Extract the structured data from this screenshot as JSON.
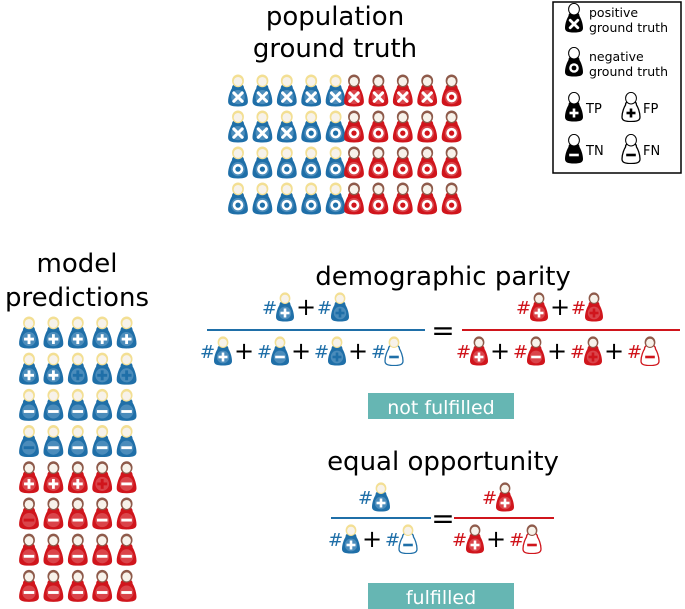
{
  "colors": {
    "blue": "#1f6fa8",
    "blue_pale": "#cfe3f3",
    "red": "#d0151c",
    "red_pale": "#f8d2d2",
    "head_blond": "#f3df93",
    "head_brown": "#8e5a4a",
    "face": "#f7f2ea",
    "black": "#000000",
    "badge": "#66b6b3"
  },
  "titles": {
    "population_1": "population",
    "population_2": "ground truth",
    "model_1": "model",
    "model_2": "predictions",
    "dp": "demographic parity",
    "eo": "equal opportunity"
  },
  "legend": {
    "positive_1": "positive",
    "positive_2": "ground truth",
    "negative_1": "negative",
    "negative_2": "ground truth",
    "tp": "TP",
    "fp": "FP",
    "tn": "TN",
    "fn": "FN"
  },
  "symbols": {
    "hash": "#",
    "plus": "+",
    "equals": "="
  },
  "badges": {
    "dp": "not fulfilled",
    "eo": "fulfilled"
  },
  "population": {
    "blue": [
      [
        "x",
        "x",
        "x",
        "x",
        "x"
      ],
      [
        "x",
        "x",
        "x",
        "o",
        "o"
      ],
      [
        "o",
        "o",
        "o",
        "o",
        "o"
      ],
      [
        "o",
        "o",
        "o",
        "o",
        "o"
      ]
    ],
    "red": [
      [
        "x",
        "x",
        "x",
        "x",
        "o"
      ],
      [
        "o",
        "o",
        "o",
        "o",
        "o"
      ],
      [
        "o",
        "o",
        "o",
        "o",
        "o"
      ],
      [
        "o",
        "o",
        "o",
        "o",
        "o"
      ]
    ]
  },
  "predictions": [
    [
      "TP",
      "TP",
      "TP",
      "TP",
      "TP"
    ],
    [
      "TP",
      "TP",
      "FP",
      "FP",
      "FP"
    ],
    [
      "TN",
      "TN",
      "TN",
      "TN",
      "TN"
    ],
    [
      "FN",
      "TN",
      "TN",
      "TN",
      "TN"
    ],
    [
      "TP",
      "TP",
      "TP",
      "FP",
      "TN"
    ],
    [
      "FN",
      "TN",
      "TN",
      "TN",
      "TN"
    ],
    [
      "TN",
      "TN",
      "TN",
      "TN",
      "TN"
    ],
    [
      "TN",
      "TN",
      "TN",
      "TN",
      "TN"
    ]
  ]
}
